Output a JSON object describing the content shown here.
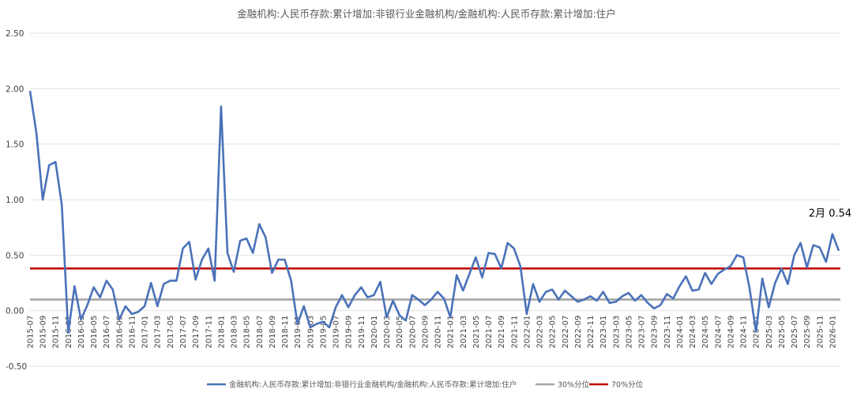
{
  "chart_data": {
    "type": "line",
    "title": "金融机构:人民币存款:累计增加:非银行业金融机构/金融机构:人民币存款:累计增加:住户",
    "xlabel": "",
    "ylabel": "",
    "ylim": [
      -0.5,
      2.5
    ],
    "yticks": [
      "2.50",
      "2.00",
      "1.50",
      "1.00",
      "0.50",
      "0.00",
      "-0.50"
    ],
    "grid": true,
    "legend_position": "bottom",
    "x_tick_labels": [
      "2015-07",
      "2015-09",
      "2015-11",
      "2016-01",
      "2016-03",
      "2016-05",
      "2016-07",
      "2016-09",
      "2016-11",
      "2017-01",
      "2017-03",
      "2017-05",
      "2017-07",
      "2017-09",
      "2017-11",
      "2018-01",
      "2018-03",
      "2018-05",
      "2018-07",
      "2018-09",
      "2018-11",
      "2019-01",
      "2019-03",
      "2019-05",
      "2019-07",
      "2019-09",
      "2019-11",
      "2020-01",
      "2020-03",
      "2020-05",
      "2020-07",
      "2020-09",
      "2020-11",
      "2021-01",
      "2021-03",
      "2021-05",
      "2021-07",
      "2021-09",
      "2021-11",
      "2022-01",
      "2022-03",
      "2022-05",
      "2022-07",
      "2022-09",
      "2022-11",
      "2023-01",
      "2023-03",
      "2023-05",
      "2023-07",
      "2023-09",
      "2023-11",
      "2024-01",
      "2024-03",
      "2024-05",
      "2024-07",
      "2024-09",
      "2024-11",
      "2025-01",
      "2025-03",
      "2025-05",
      "2025-07",
      "2025-09",
      "2025-11",
      "2026-01"
    ],
    "series": [
      {
        "name": "金融机构:人民币存款:累计增加:非银行业金融机构/金融机构:人民币存款:累计增加:住户",
        "color": "#4a72b8",
        "values": [
          1.98,
          1.6,
          1.0,
          1.31,
          1.34,
          0.95,
          -0.2,
          0.22,
          -0.08,
          0.05,
          0.21,
          0.12,
          0.27,
          0.19,
          -0.08,
          0.04,
          -0.03,
          -0.01,
          0.04,
          0.25,
          0.04,
          0.24,
          0.27,
          0.27,
          0.56,
          0.62,
          0.28,
          0.46,
          0.56,
          0.27,
          1.84,
          0.52,
          0.35,
          0.63,
          0.65,
          0.52,
          0.78,
          0.66,
          0.34,
          0.46,
          0.46,
          0.27,
          -0.12,
          0.04,
          -0.15,
          -0.12,
          -0.1,
          -0.15,
          0.03,
          0.14,
          0.03,
          0.14,
          0.21,
          0.12,
          0.14,
          0.26,
          -0.06,
          0.09,
          -0.04,
          -0.09,
          0.14,
          0.1,
          0.05,
          0.1,
          0.17,
          0.11,
          -0.06,
          0.32,
          0.18,
          0.33,
          0.48,
          0.3,
          0.52,
          0.51,
          0.38,
          0.61,
          0.56,
          0.4,
          -0.03,
          0.24,
          0.08,
          0.17,
          0.19,
          0.1,
          0.18,
          0.13,
          0.08,
          0.1,
          0.13,
          0.09,
          0.17,
          0.07,
          0.08,
          0.13,
          0.16,
          0.09,
          0.14,
          0.07,
          0.02,
          0.05,
          0.15,
          0.11,
          0.22,
          0.31,
          0.18,
          0.19,
          0.34,
          0.24,
          0.33,
          0.37,
          0.4,
          0.5,
          0.48,
          0.2,
          -0.19,
          0.29,
          0.03,
          0.25,
          0.38,
          0.24,
          0.5,
          0.61,
          0.39,
          0.59,
          0.57,
          0.44,
          0.69,
          0.54
        ]
      },
      {
        "name": "30%分位",
        "color": "#a6a6a6",
        "constant": 0.1
      },
      {
        "name": "70%分位",
        "color": "#c00000",
        "constant": 0.38
      }
    ],
    "annotation": {
      "text": "2月  0.54",
      "value": 0.54
    }
  }
}
